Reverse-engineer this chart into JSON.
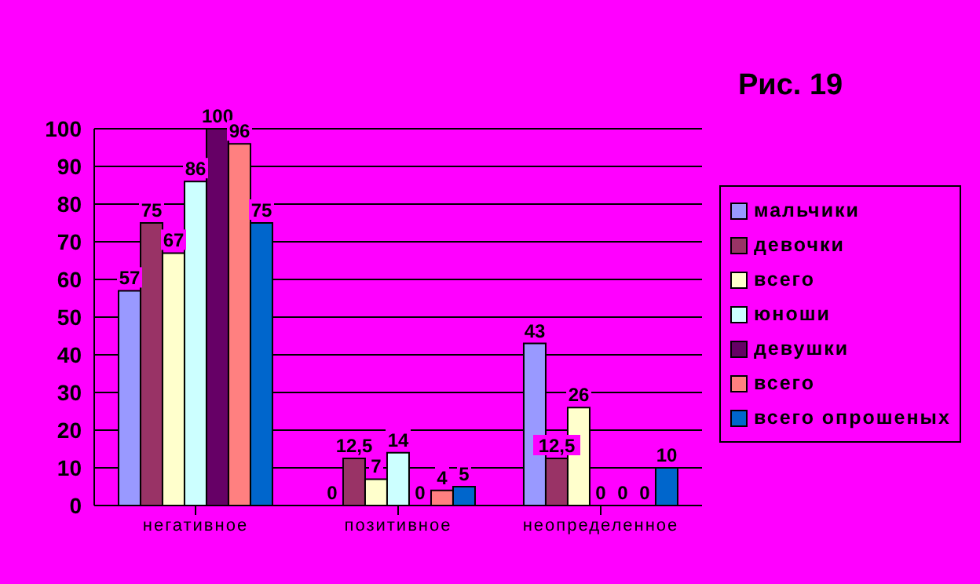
{
  "chart_data": {
    "type": "bar",
    "title": "Рис. 19",
    "categories": [
      "негативное",
      "позитивное",
      "неопределенное"
    ],
    "series": [
      {
        "name": "мальчики",
        "color": "#9999ff",
        "values": [
          57,
          0,
          43
        ],
        "value_labels": [
          "57",
          "0",
          "43"
        ]
      },
      {
        "name": "девочки",
        "color": "#993366",
        "values": [
          75,
          12.5,
          12.5
        ],
        "value_labels": [
          "75",
          "12,5",
          "12,5"
        ]
      },
      {
        "name": "всего",
        "color": "#ffffcc",
        "values": [
          67,
          7,
          26
        ],
        "value_labels": [
          "67",
          "7",
          "26"
        ]
      },
      {
        "name": "юноши",
        "color": "#ccffff",
        "values": [
          86,
          14,
          0
        ],
        "value_labels": [
          "86",
          "14",
          "0"
        ]
      },
      {
        "name": "девушки",
        "color": "#660066",
        "values": [
          100,
          0,
          0
        ],
        "value_labels": [
          "100",
          "0",
          "0"
        ]
      },
      {
        "name": "всего",
        "color": "#ff8080",
        "values": [
          96,
          4,
          0
        ],
        "value_labels": [
          "96",
          "4",
          "0"
        ]
      },
      {
        "name": "всего опрошеных",
        "color": "#0066cc",
        "values": [
          75,
          5,
          10
        ],
        "value_labels": [
          "75",
          "5",
          "10"
        ]
      }
    ],
    "ylim": [
      0,
      100
    ],
    "yticks": [
      0,
      10,
      20,
      30,
      40,
      50,
      60,
      70,
      80,
      90,
      100
    ],
    "grid": "y",
    "legend": "right"
  }
}
